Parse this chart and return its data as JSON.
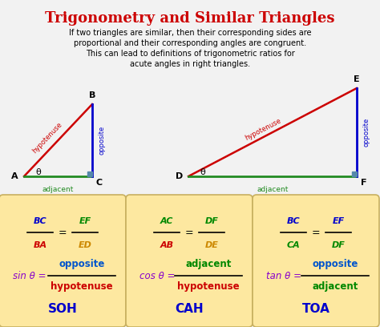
{
  "title": "Trigonometry and Similar Triangles",
  "title_color": "#cc0000",
  "bg_color": "#f2f2f2",
  "subtitle_lines": [
    "If two triangles are similar, then their corresponding sides are",
    "proportional and their corresponding angles are congruent.",
    "This can lead to definitions of trigonometric ratios for",
    "acute angles in right triangles."
  ],
  "boxes": [
    {
      "ratio_top1": "BC",
      "ratio_bot1": "BA",
      "ratio_top1_color": "#0000cc",
      "ratio_bot1_color": "#cc0000",
      "ratio_top2": "EF",
      "ratio_bot2": "ED",
      "ratio_top2_color": "#008800",
      "ratio_bot2_color": "#cc8800",
      "trig_func": "sin",
      "trig_num": "opposite",
      "trig_den": "hypotenuse",
      "trig_num_color": "#0055cc",
      "trig_den_color": "#cc0000",
      "trig_color": "#8800cc",
      "acronym": "SOH",
      "acronym_color": "#0000cc"
    },
    {
      "ratio_top1": "AC",
      "ratio_bot1": "AB",
      "ratio_top1_color": "#008800",
      "ratio_bot1_color": "#cc0000",
      "ratio_top2": "DF",
      "ratio_bot2": "DE",
      "ratio_top2_color": "#008800",
      "ratio_bot2_color": "#cc8800",
      "trig_func": "cos",
      "trig_num": "adjacent",
      "trig_den": "hypotenuse",
      "trig_num_color": "#008800",
      "trig_den_color": "#cc0000",
      "trig_color": "#8800cc",
      "acronym": "CAH",
      "acronym_color": "#0000cc"
    },
    {
      "ratio_top1": "BC",
      "ratio_bot1": "CA",
      "ratio_top1_color": "#0000cc",
      "ratio_bot1_color": "#008800",
      "ratio_top2": "EF",
      "ratio_bot2": "DF",
      "ratio_top2_color": "#0000cc",
      "ratio_bot2_color": "#008800",
      "trig_func": "tan",
      "trig_num": "opposite",
      "trig_den": "adjacent",
      "trig_num_color": "#0055cc",
      "trig_den_color": "#008800",
      "trig_color": "#8800cc",
      "acronym": "TOA",
      "acronym_color": "#0000cc"
    }
  ],
  "box_bg": "#fde8a0",
  "green": "#228B22",
  "blue": "#0000cc",
  "red": "#cc0000",
  "steel_blue": "#5588aa"
}
